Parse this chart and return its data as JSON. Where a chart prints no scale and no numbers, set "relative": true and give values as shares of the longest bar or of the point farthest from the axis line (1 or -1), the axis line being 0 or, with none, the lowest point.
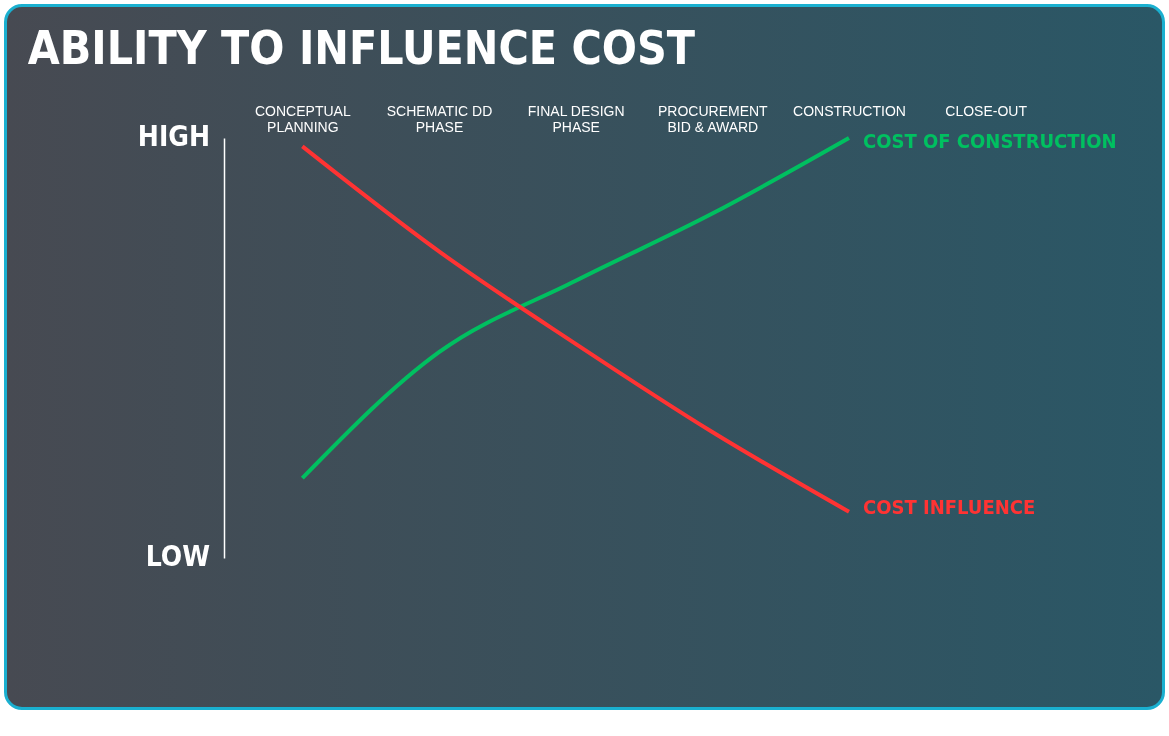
{
  "chart_data": {
    "type": "line",
    "title": "ABILITY TO INFLUENCE COST",
    "categories": [
      "CONCEPTUAL PLANNING",
      "SCHEMATIC DD PHASE",
      "FINAL DESIGN PHASE",
      "PROCUREMENT BID & AWARD",
      "CONSTRUCTION",
      "CLOSE-OUT"
    ],
    "series": [
      {
        "name": "COST OF CONSTRUCTION",
        "color": "#00c060",
        "values": [
          0.19,
          0.49,
          0.66,
          0.82,
          1,
          null
        ]
      },
      {
        "name": "COST INFLUENCE",
        "color": "#ff3333",
        "values": [
          0.98,
          0.73,
          0.51,
          0.3,
          0.11,
          null
        ]
      }
    ],
    "relative": true,
    "annotations": [
      "HIGH",
      "LOW"
    ],
    "grid": false,
    "legend": false,
    "marker": "none",
    "line_style": "solid"
  }
}
